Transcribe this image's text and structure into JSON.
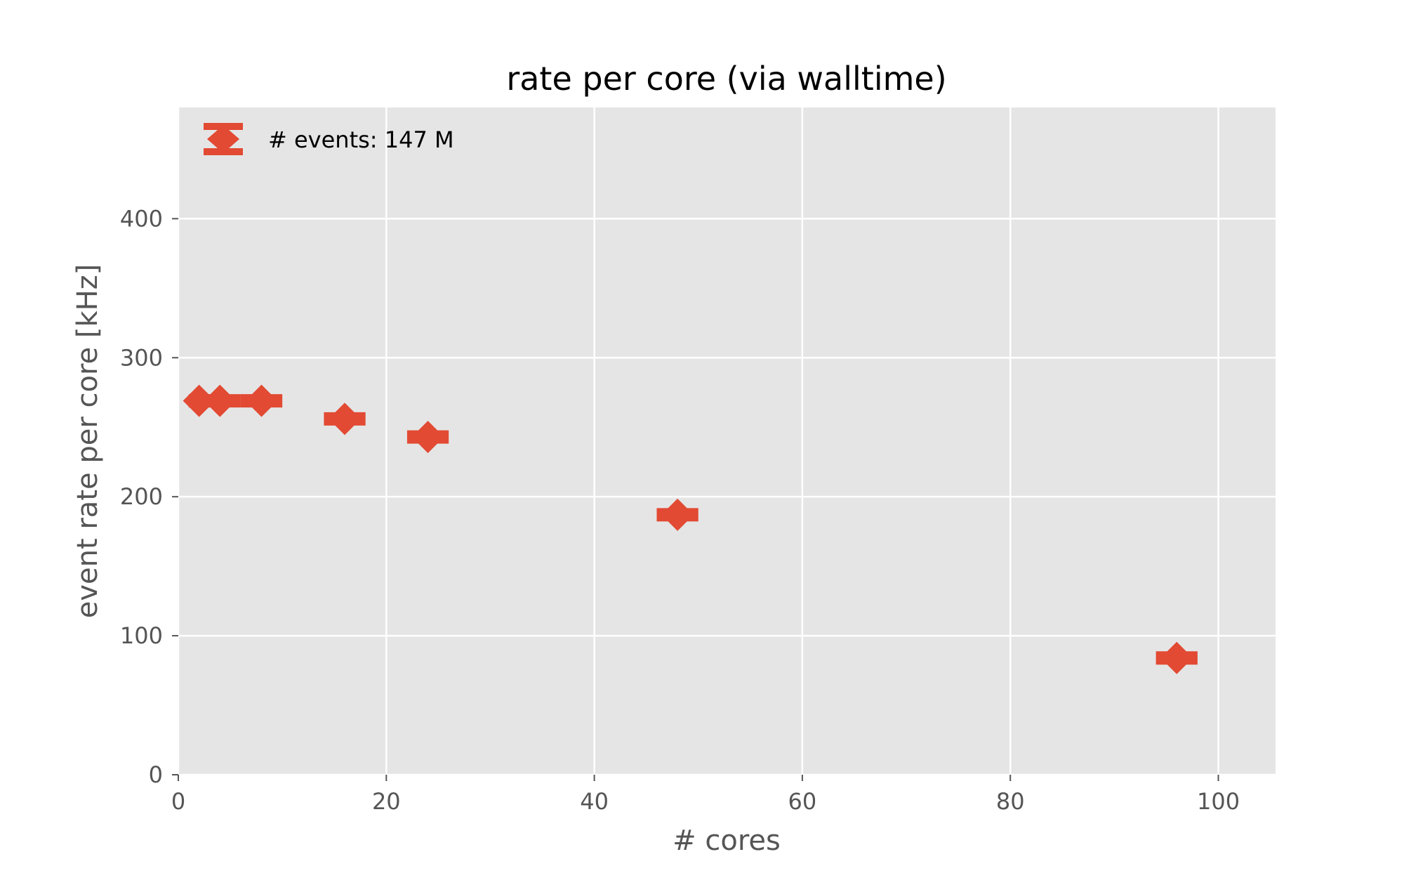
{
  "chart_data": {
    "type": "scatter",
    "title": "rate per core (via walltime)",
    "xlabel": "# cores",
    "ylabel": "event rate per core [kHz]",
    "xlim": [
      0,
      105.5
    ],
    "ylim": [
      0,
      480
    ],
    "xticks": [
      0,
      20,
      40,
      60,
      80,
      100
    ],
    "yticks": [
      0,
      100,
      200,
      300,
      400
    ],
    "xtick_labels": [
      "0",
      "20",
      "40",
      "60",
      "80",
      "100"
    ],
    "ytick_labels": [
      "0",
      "100",
      "200",
      "300",
      "400"
    ],
    "grid": true,
    "legend_position": "top-left",
    "marker": "diamond with error bars",
    "series": [
      {
        "name": "# events: 147 M",
        "color": "#E24A33",
        "points": [
          {
            "x": 2,
            "y": 269,
            "xerr": 1
          },
          {
            "x": 4,
            "y": 269,
            "xerr": 2
          },
          {
            "x": 8,
            "y": 269,
            "xerr": 2
          },
          {
            "x": 16,
            "y": 256,
            "xerr": 2
          },
          {
            "x": 24,
            "y": 243,
            "xerr": 2
          },
          {
            "x": 48,
            "y": 187,
            "xerr": 2
          },
          {
            "x": 96,
            "y": 84,
            "xerr": 2
          }
        ]
      }
    ]
  }
}
